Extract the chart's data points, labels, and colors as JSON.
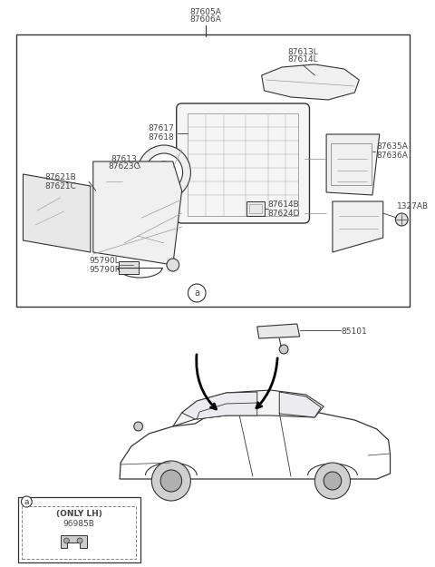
{
  "bg_color": "#ffffff",
  "line_color": "#333333",
  "text_color": "#444444",
  "fig_width": 4.8,
  "fig_height": 6.25,
  "dpi": 100,
  "labels": {
    "top_label1": "87605A",
    "top_label2": "87606A",
    "label_87613L": "87613L",
    "label_87614L": "87614L",
    "label_87617": "87617",
    "label_87618": "87618",
    "label_87613": "87613",
    "label_87623C": "87623C",
    "label_87621B": "87621B",
    "label_87621C": "87621C",
    "label_87635A": "87635A",
    "label_87636A": "87636A",
    "label_87614B": "87614B",
    "label_87624D": "87624D",
    "label_1327AB": "1327AB",
    "label_95790L": "95790L",
    "label_95790R": "95790R",
    "label_circle_a": "a",
    "label_85101": "85101",
    "box_a": "a",
    "only_lh": "(ONLY LH)",
    "label_96985B": "96985B"
  }
}
